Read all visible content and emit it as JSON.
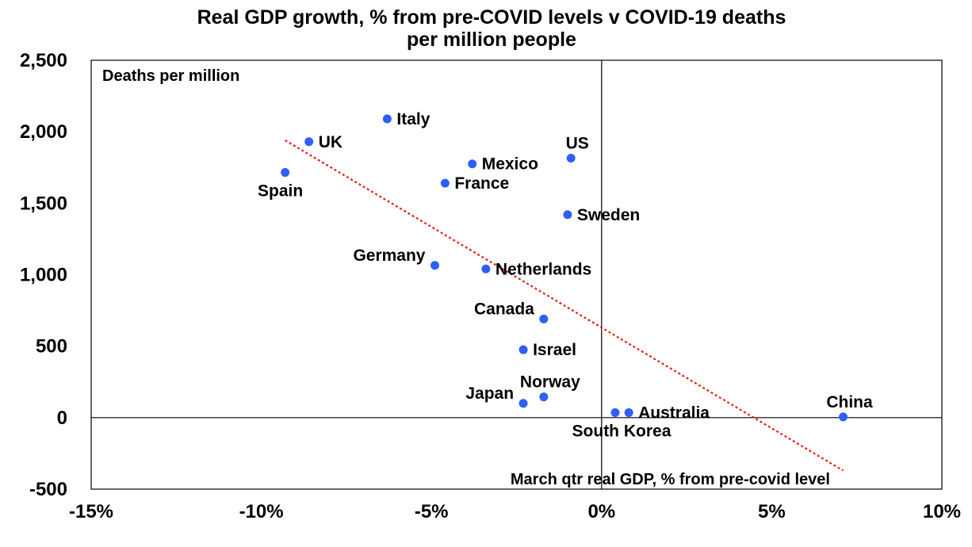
{
  "chart_data": {
    "type": "scatter",
    "title_lines": [
      "Real GDP growth, % from pre-COVID levels v COVID-19 deaths",
      "per million people"
    ],
    "xlabel": "March qtr real GDP, % from pre-covid level",
    "ylabel": "Deaths per million",
    "xlim": [
      -15,
      10
    ],
    "ylim": [
      -500,
      2500
    ],
    "x_ticks": [
      -15,
      -10,
      -5,
      0,
      5,
      10
    ],
    "x_tick_labels": [
      "-15%",
      "-10%",
      "-5%",
      "0%",
      "5%",
      "10%"
    ],
    "y_ticks": [
      -500,
      0,
      500,
      1000,
      1500,
      2000,
      2500
    ],
    "y_tick_labels": [
      "-500",
      "0",
      "500",
      "1,000",
      "1,500",
      "2,000",
      "2,500"
    ],
    "point_color": "#2f5ff5",
    "trendline_color": "#e0201b",
    "trendline": {
      "x": [
        -9.3,
        7.1
      ],
      "y": [
        1940,
        -370
      ]
    },
    "points": [
      {
        "name": "Italy",
        "x": -6.3,
        "y": 2090,
        "label_pos": "right"
      },
      {
        "name": "UK",
        "x": -8.6,
        "y": 1930,
        "label_pos": "right"
      },
      {
        "name": "Spain",
        "x": -9.3,
        "y": 1715,
        "label_pos": "below-left"
      },
      {
        "name": "Mexico",
        "x": -3.8,
        "y": 1775,
        "label_pos": "right"
      },
      {
        "name": "France",
        "x": -4.6,
        "y": 1640,
        "label_pos": "right"
      },
      {
        "name": "US",
        "x": -0.9,
        "y": 1815,
        "label_pos": "above"
      },
      {
        "name": "Sweden",
        "x": -1.0,
        "y": 1420,
        "label_pos": "right"
      },
      {
        "name": "Germany",
        "x": -4.9,
        "y": 1065,
        "label_pos": "left"
      },
      {
        "name": "Netherlands",
        "x": -3.4,
        "y": 1040,
        "label_pos": "right"
      },
      {
        "name": "Canada",
        "x": -1.7,
        "y": 690,
        "label_pos": "left"
      },
      {
        "name": "Israel",
        "x": -2.3,
        "y": 475,
        "label_pos": "right"
      },
      {
        "name": "Norway",
        "x": -1.7,
        "y": 145,
        "label_pos": "above"
      },
      {
        "name": "Japan",
        "x": -2.3,
        "y": 100,
        "label_pos": "left"
      },
      {
        "name": "South Korea",
        "x": 0.4,
        "y": 35,
        "label_pos": "below"
      },
      {
        "name": "Australia",
        "x": 0.8,
        "y": 35,
        "label_pos": "right"
      },
      {
        "name": "China",
        "x": 7.1,
        "y": 5,
        "label_pos": "above"
      }
    ]
  }
}
